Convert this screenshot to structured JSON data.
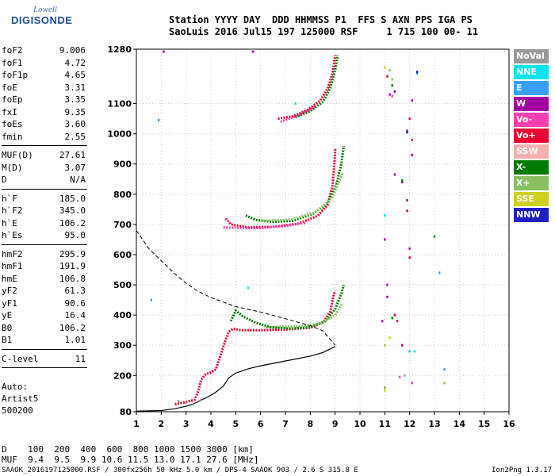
{
  "logo": {
    "top": "Lowell",
    "main": "DIGISONDE"
  },
  "header": {
    "line1": "Station YYYY DAY  DDD HHMMSS P1  FFS S AXN PPS IGA PS",
    "line2": "SaoLuis 2016 Jul15 197 125000 RSF     1 715 100 00- 11"
  },
  "params": {
    "group1": [
      {
        "label": "foF2",
        "value": "9.006"
      },
      {
        "label": "foF1",
        "value": "4.72"
      },
      {
        "label": "foF1p",
        "value": "4.65"
      },
      {
        "label": "foE",
        "value": "3.31"
      },
      {
        "label": "foEp",
        "value": "3.35"
      },
      {
        "label": "fxI",
        "value": "9.35"
      },
      {
        "label": "foEs",
        "value": "3.60"
      },
      {
        "label": "fmin",
        "value": "2.55"
      }
    ],
    "group2": [
      {
        "label": "MUF(D)",
        "value": "27.61"
      },
      {
        "label": "M(D)",
        "value": "3.07"
      },
      {
        "label": "D",
        "value": "N/A"
      }
    ],
    "group3": [
      {
        "label": "h`F",
        "value": "185.0"
      },
      {
        "label": "h`F2",
        "value": "345.0"
      },
      {
        "label": "h`E",
        "value": "106.2"
      },
      {
        "label": "h`Es",
        "value": "95.0"
      }
    ],
    "group4": [
      {
        "label": "hmF2",
        "value": "295.9"
      },
      {
        "label": "hmF1",
        "value": "191.9"
      },
      {
        "label": "hmE",
        "value": "106.8"
      },
      {
        "label": "yF2",
        "value": "61.3"
      },
      {
        "label": "yF1",
        "value": "90.6"
      },
      {
        "label": "yE",
        "value": "16.4"
      },
      {
        "label": "B0",
        "value": "106.2"
      },
      {
        "label": "B1",
        "value": "1.01"
      }
    ],
    "group5": [
      {
        "label": "C-level",
        "value": "11"
      }
    ]
  },
  "auto": {
    "line1": "Auto:",
    "line2": "Artist5",
    "line3": "500200"
  },
  "legend": [
    {
      "label": "NoVal",
      "color": "#999999"
    },
    {
      "label": "NNE",
      "color": "#00e5ee"
    },
    {
      "label": "E",
      "color": "#3aa0ff"
    },
    {
      "label": "W",
      "color": "#a000a0"
    },
    {
      "label": "Vo-",
      "color": "#ff40b0"
    },
    {
      "label": "Vo+",
      "color": "#ee0030"
    },
    {
      "label": "SSW",
      "color": "#f4b0b0"
    },
    {
      "label": "X-",
      "color": "#007a00"
    },
    {
      "label": "X+",
      "color": "#88c060"
    },
    {
      "label": "SSE",
      "color": "#d0d020"
    },
    {
      "label": "NNW",
      "color": "#2020c0"
    }
  ],
  "bottom": {
    "line1": "D    100  200  400  600  800 1000 1500 3000 [km]",
    "line2": "MUF  9.4  9.5  9.9 10.6 11.5 13.0 17.1 27.6 [MHz]"
  },
  "footer": "SAAOK_2016197125000.RSF / 300fx256h 50 kHz 5.0 km / DPS-4 SAAOK 903 / 2.6 S 315.8 E",
  "version": "Ion2Png 1.3.17",
  "chart_data": {
    "type": "scatter",
    "xlim": [
      1,
      16
    ],
    "ylim": [
      80,
      1280
    ],
    "x_ticks": [
      1,
      2,
      3,
      4,
      5,
      6,
      7,
      8,
      9,
      10,
      11,
      12,
      13,
      14,
      15,
      16
    ],
    "y_ticks": [
      80,
      200,
      300,
      400,
      500,
      600,
      700,
      800,
      900,
      1000,
      1100,
      1280
    ],
    "grid": true,
    "legend_position": "right",
    "series": [
      {
        "color": "#ee0030",
        "style": "traces",
        "segments": [
          [
            [
              2.55,
              105
            ],
            [
              3.0,
              112
            ],
            [
              3.35,
              120
            ],
            [
              3.5,
              150
            ],
            [
              3.6,
              185
            ],
            [
              3.8,
              205
            ],
            [
              4.0,
              210
            ],
            [
              4.2,
              220
            ],
            [
              4.4,
              270
            ],
            [
              4.6,
              320
            ],
            [
              4.72,
              345
            ],
            [
              4.9,
              355
            ],
            [
              5.2,
              350
            ],
            [
              6.0,
              350
            ],
            [
              7.0,
              352
            ],
            [
              8.0,
              358
            ],
            [
              8.5,
              375
            ],
            [
              8.8,
              410
            ],
            [
              8.95,
              470
            ],
            [
              9.006,
              480
            ]
          ],
          [
            [
              4.6,
              720
            ],
            [
              4.8,
              700
            ],
            [
              5.5,
              690
            ],
            [
              6.5,
              692
            ],
            [
              7.5,
              702
            ],
            [
              8.3,
              728
            ],
            [
              8.7,
              765
            ],
            [
              8.9,
              830
            ],
            [
              8.97,
              900
            ],
            [
              9.006,
              950
            ]
          ],
          [
            [
              6.7,
              1050
            ],
            [
              7.3,
              1058
            ],
            [
              7.9,
              1080
            ],
            [
              8.4,
              1110
            ],
            [
              8.7,
              1150
            ],
            [
              8.9,
              1200
            ],
            [
              9.0,
              1260
            ]
          ]
        ]
      },
      {
        "color": "#007a00",
        "style": "traces",
        "segments": [
          [
            [
              4.8,
              380
            ],
            [
              5.0,
              415
            ],
            [
              5.3,
              395
            ],
            [
              5.8,
              375
            ],
            [
              6.4,
              360
            ],
            [
              7.2,
              355
            ],
            [
              8.0,
              360
            ],
            [
              8.6,
              380
            ],
            [
              9.0,
              420
            ],
            [
              9.25,
              470
            ],
            [
              9.35,
              500
            ]
          ],
          [
            [
              5.4,
              730
            ],
            [
              5.8,
              715
            ],
            [
              6.5,
              708
            ],
            [
              7.3,
              712
            ],
            [
              8.1,
              735
            ],
            [
              8.7,
              770
            ],
            [
              9.05,
              830
            ],
            [
              9.25,
              900
            ],
            [
              9.35,
              960
            ]
          ],
          [
            [
              7.4,
              1055
            ],
            [
              8.0,
              1075
            ],
            [
              8.5,
              1105
            ],
            [
              8.8,
              1150
            ],
            [
              9.0,
              1210
            ],
            [
              9.1,
              1260
            ]
          ]
        ]
      },
      {
        "color": "#88c060",
        "style": "traces",
        "segments": [
          [
            [
              6.2,
              360
            ],
            [
              7.5,
              362
            ],
            [
              8.4,
              372
            ],
            [
              9.0,
              400
            ],
            [
              9.3,
              440
            ]
          ],
          [
            [
              6.0,
              712
            ],
            [
              7.2,
              716
            ],
            [
              8.2,
              740
            ],
            [
              8.9,
              790
            ],
            [
              9.3,
              870
            ]
          ]
        ]
      },
      {
        "color": "#ff40b0",
        "style": "traces",
        "segments": [
          [
            [
              4.5,
              690
            ],
            [
              5.2,
              688
            ],
            [
              6.0,
              688
            ],
            [
              7.0,
              695
            ],
            [
              7.8,
              705
            ]
          ],
          [
            [
              6.8,
              1040
            ],
            [
              7.5,
              1060
            ],
            [
              8.2,
              1090
            ]
          ]
        ]
      },
      {
        "color": "#000000",
        "style": "dashed",
        "segments": [
          [
            [
              1.0,
              680
            ],
            [
              1.5,
              620
            ],
            [
              2.0,
              580
            ],
            [
              2.5,
              540
            ],
            [
              3.0,
              505
            ],
            [
              3.5,
              478
            ],
            [
              4.0,
              458
            ],
            [
              4.5,
              443
            ],
            [
              5.0,
              428
            ],
            [
              6.0,
              410
            ],
            [
              7.0,
              388
            ],
            [
              8.0,
              365
            ],
            [
              8.5,
              348
            ],
            [
              9.006,
              300
            ]
          ]
        ]
      },
      {
        "color": "#000000",
        "style": "solid",
        "segments": [
          [
            [
              1.0,
              82
            ],
            [
              2.0,
              84
            ],
            [
              2.55,
              90
            ],
            [
              3.0,
              98
            ],
            [
              3.3,
              106
            ],
            [
              3.6,
              118
            ],
            [
              3.9,
              130
            ],
            [
              4.2,
              145
            ],
            [
              4.5,
              165
            ],
            [
              4.72,
              192
            ],
            [
              5.0,
              208
            ],
            [
              5.5,
              222
            ],
            [
              6.0,
              232
            ],
            [
              6.5,
              240
            ],
            [
              7.0,
              248
            ],
            [
              7.5,
              256
            ],
            [
              8.0,
              264
            ],
            [
              8.5,
              276
            ],
            [
              8.8,
              288
            ],
            [
              9.006,
              296
            ]
          ]
        ]
      }
    ],
    "scatter_points": [
      {
        "color": "#a000a0",
        "points": [
          [
            2.1,
            1272
          ],
          [
            5.7,
            1272
          ],
          [
            11.2,
            1130
          ],
          [
            11.4,
            1140
          ],
          [
            12.1,
            1110
          ],
          [
            11.9,
            1010
          ],
          [
            12.1,
            930
          ],
          [
            11.7,
            840
          ],
          [
            11.4,
            865
          ],
          [
            11.9,
            780
          ],
          [
            11.9,
            745
          ],
          [
            12.0,
            620
          ],
          [
            11.0,
            650
          ],
          [
            11.1,
            500
          ],
          [
            11.1,
            460
          ],
          [
            10.9,
            380
          ],
          [
            11.7,
            300
          ]
        ]
      },
      {
        "color": "#3aa0ff",
        "points": [
          [
            1.9,
            1045
          ],
          [
            1.6,
            450
          ],
          [
            11.0,
            730
          ],
          [
            12.3,
            1200
          ],
          [
            12.0,
            280
          ],
          [
            13.2,
            540
          ],
          [
            13.4,
            220
          ]
        ]
      },
      {
        "color": "#ee0030",
        "points": [
          [
            11.1,
            1190
          ],
          [
            12.0,
            1050
          ],
          [
            12.1,
            980
          ],
          [
            12.0,
            590
          ],
          [
            11.4,
            400
          ],
          [
            11.5,
            380
          ]
        ]
      },
      {
        "color": "#007a00",
        "points": [
          [
            11.7,
            845
          ],
          [
            13.0,
            660
          ],
          [
            11.3,
            1160
          ],
          [
            11.3,
            390
          ],
          [
            11.0,
            160
          ]
        ]
      },
      {
        "color": "#88c060",
        "points": [
          [
            11.2,
            1210
          ],
          [
            11.0,
            300
          ],
          [
            11.8,
            200
          ],
          [
            11.0,
            160
          ],
          [
            11.3,
            1180
          ],
          [
            13.4,
            175
          ]
        ]
      },
      {
        "color": "#2020c0",
        "points": [
          [
            12.3,
            1205
          ],
          [
            11.9,
            1005
          ]
        ]
      },
      {
        "color": "#d0d020",
        "points": [
          [
            11.0,
            1220
          ],
          [
            11.2,
            325
          ],
          [
            11.0,
            150
          ]
        ]
      },
      {
        "color": "#ff40b0",
        "points": [
          [
            11.3,
            1125
          ],
          [
            11.6,
            195
          ],
          [
            12.1,
            175
          ]
        ]
      },
      {
        "color": "#00e5ee",
        "points": [
          [
            12.2,
            280
          ],
          [
            7.4,
            1100
          ],
          [
            5.5,
            490
          ],
          [
            11.0,
            730
          ]
        ]
      },
      {
        "color": "#999999",
        "points": [
          [
            3.0,
            110
          ],
          [
            3.3,
            105
          ],
          [
            2.7,
            115
          ],
          [
            3.6,
            118
          ]
        ]
      }
    ]
  }
}
